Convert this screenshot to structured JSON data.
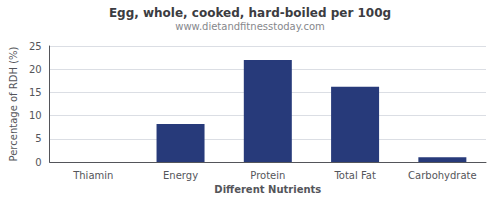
{
  "chart_data": {
    "type": "bar",
    "title": "Egg, whole, cooked, hard-boiled per 100g",
    "subtitle": "www.dietandfitnesstoday.com",
    "xlabel": "Different Nutrients",
    "ylabel": "Percentage of RDH (%)",
    "categories": [
      "Thiamin",
      "Energy",
      "Protein",
      "Total Fat",
      "Carbohydrate"
    ],
    "values": [
      0,
      8.2,
      22,
      16.2,
      1.0
    ],
    "color": "#273a7a",
    "ylim": [
      0,
      25
    ],
    "yticks": [
      0,
      5,
      10,
      15,
      20,
      25
    ],
    "grid": true
  }
}
